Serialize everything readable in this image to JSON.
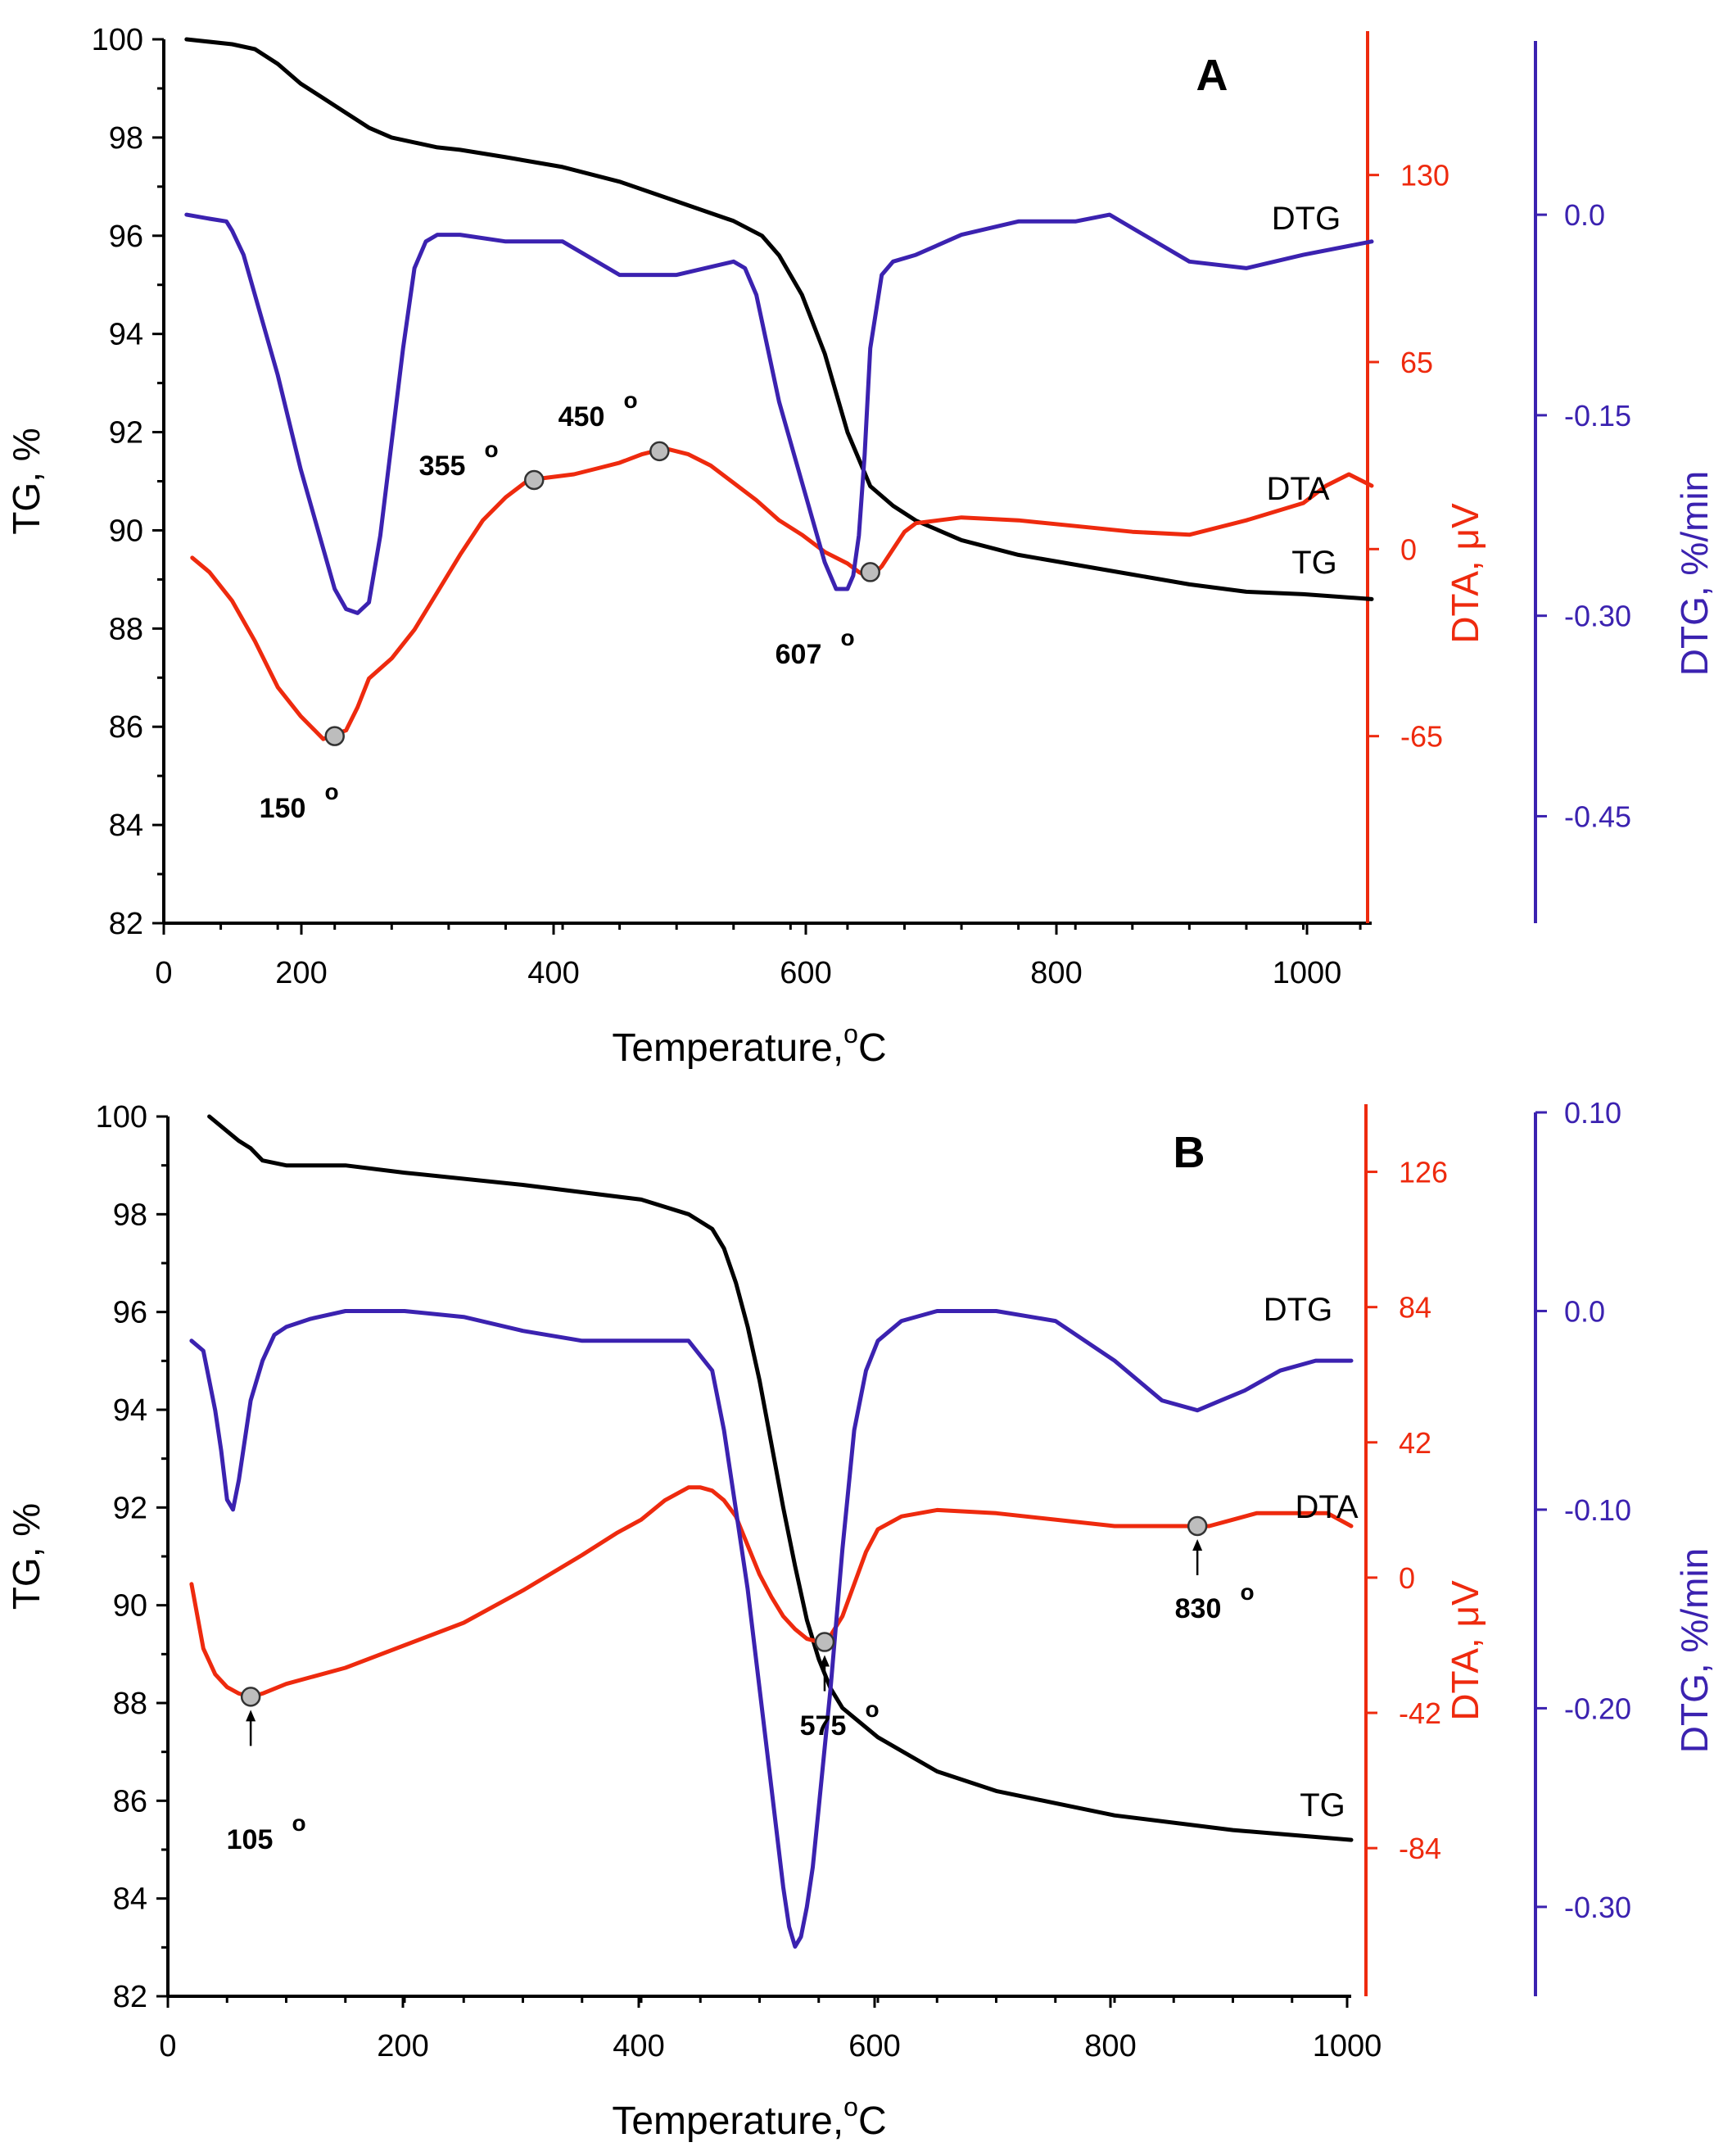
{
  "colors": {
    "tg": "#000000",
    "dta": "#ee2a0e",
    "dtg": "#3b22b0",
    "marker": "#bdbdbd"
  },
  "chart_data": [
    {
      "type": "line",
      "panel_label": "A",
      "title": "",
      "xlabel": "Temperature,",
      "xlabel_unit": "C",
      "xlabel_sup": "o",
      "x_range": [
        0,
        1060
      ],
      "x_ticks": [
        "0",
        "200",
        "400",
        "600",
        "800",
        "1000"
      ],
      "y_left": {
        "label": "TG, %",
        "range": [
          82,
          100
        ],
        "ticks": [
          "82",
          "84",
          "86",
          "88",
          "90",
          "92",
          "94",
          "96",
          "98",
          "100"
        ]
      },
      "y_dta": {
        "label": "DTA, μV",
        "range": [
          -130,
          180
        ],
        "ticks": [
          "-65",
          "0",
          "65",
          "130"
        ]
      },
      "y_dtg": {
        "label": "DTG, %/min",
        "range": [
          -0.53,
          0.13
        ],
        "ticks": [
          "-0.45",
          "-0.30",
          "-0.15",
          "0.0"
        ]
      },
      "series": [
        {
          "name": "TG",
          "axis": "left",
          "color_key": "tg",
          "x": [
            20,
            60,
            80,
            100,
            120,
            140,
            160,
            180,
            200,
            220,
            240,
            260,
            300,
            350,
            400,
            450,
            500,
            525,
            540,
            560,
            580,
            600,
            620,
            640,
            660,
            680,
            700,
            750,
            800,
            850,
            900,
            950,
            1000,
            1060
          ],
          "y": [
            100,
            99.9,
            99.8,
            99.5,
            99.1,
            98.8,
            98.5,
            98.2,
            98.0,
            97.9,
            97.8,
            97.75,
            97.6,
            97.4,
            97.1,
            96.7,
            96.3,
            96.0,
            95.6,
            94.8,
            93.6,
            92.0,
            90.9,
            90.5,
            90.2,
            90.0,
            89.8,
            89.5,
            89.3,
            89.1,
            88.9,
            88.75,
            88.7,
            88.6
          ]
        },
        {
          "name": "DTA",
          "axis": "dta",
          "color_key": "dta",
          "x": [
            25,
            40,
            60,
            80,
            100,
            120,
            140,
            160,
            170,
            180,
            200,
            220,
            240,
            260,
            280,
            300,
            320,
            340,
            360,
            380,
            400,
            420,
            440,
            460,
            480,
            500,
            520,
            540,
            560,
            580,
            600,
            610,
            620,
            630,
            640,
            650,
            660,
            680,
            700,
            750,
            800,
            850,
            900,
            950,
            1000,
            1020,
            1040,
            1060
          ],
          "y": [
            -3,
            -8,
            -18,
            -32,
            -48,
            -58,
            -66,
            -63,
            -55,
            -45,
            -38,
            -28,
            -15,
            -2,
            10,
            18,
            24,
            25,
            26,
            28,
            30,
            33,
            35,
            33,
            29,
            23,
            17,
            10,
            5,
            -1,
            -5,
            -8,
            -10,
            -6,
            0,
            6,
            9,
            10,
            11,
            10,
            8,
            6,
            5,
            10,
            16,
            22,
            26,
            22
          ]
        },
        {
          "name": "DTG",
          "axis": "dtg",
          "color_key": "dtg",
          "x": [
            20,
            40,
            55,
            60,
            70,
            80,
            100,
            120,
            140,
            150,
            160,
            170,
            180,
            190,
            200,
            210,
            220,
            230,
            240,
            260,
            300,
            350,
            400,
            450,
            500,
            510,
            520,
            530,
            540,
            560,
            580,
            590,
            600,
            605,
            610,
            615,
            620,
            630,
            640,
            660,
            700,
            750,
            800,
            830,
            860,
            900,
            950,
            1000,
            1060
          ],
          "y": [
            0.0,
            -0.003,
            -0.005,
            -0.012,
            -0.03,
            -0.06,
            -0.12,
            -0.19,
            -0.25,
            -0.28,
            -0.295,
            -0.298,
            -0.29,
            -0.24,
            -0.17,
            -0.1,
            -0.04,
            -0.02,
            -0.015,
            -0.015,
            -0.02,
            -0.02,
            -0.045,
            -0.045,
            -0.035,
            -0.04,
            -0.06,
            -0.1,
            -0.14,
            -0.2,
            -0.26,
            -0.28,
            -0.28,
            -0.27,
            -0.24,
            -0.18,
            -0.1,
            -0.045,
            -0.035,
            -0.03,
            -0.015,
            -0.005,
            -0.005,
            0.0,
            -0.015,
            -0.035,
            -0.04,
            -0.03,
            -0.02
          ]
        }
      ],
      "point_annotations": [
        {
          "label": "150",
          "sup": "o",
          "x": 150,
          "y": -65,
          "series": "DTA"
        },
        {
          "label": "355",
          "sup": "o",
          "x": 325,
          "y": 24,
          "series": "DTA"
        },
        {
          "label": "450",
          "sup": "o",
          "x": 435,
          "y": 34,
          "series": "DTA"
        },
        {
          "label": "607",
          "sup": "o",
          "x": 620,
          "y": -8,
          "series": "DTA"
        }
      ],
      "curve_labels": [
        "DTG",
        "DTA",
        "TG"
      ]
    },
    {
      "type": "line",
      "panel_label": "B",
      "title": "",
      "xlabel": "Temperature,",
      "xlabel_unit": "C",
      "xlabel_sup": "o",
      "x_range": [
        0,
        1000
      ],
      "x_ticks": [
        "0",
        "200",
        "400",
        "600",
        "800",
        "1000"
      ],
      "y_left": {
        "label": "TG, %",
        "range": [
          82,
          100
        ],
        "ticks": [
          "82",
          "84",
          "86",
          "88",
          "90",
          "92",
          "94",
          "96",
          "98",
          "100"
        ]
      },
      "y_dta": {
        "label": "DTA, μV",
        "range": [
          -130,
          147
        ],
        "ticks": [
          "-84",
          "-42",
          "0",
          "42",
          "84",
          "126"
        ]
      },
      "y_dtg": {
        "label": "DTG, %/min",
        "range": [
          -0.345,
          0.1
        ],
        "ticks": [
          "-0.30",
          "-0.20",
          "-0.10",
          "0.0",
          "0.10"
        ]
      },
      "series": [
        {
          "name": "TG",
          "axis": "left",
          "color_key": "tg",
          "x": [
            35,
            50,
            60,
            70,
            80,
            100,
            150,
            200,
            300,
            400,
            440,
            460,
            470,
            480,
            490,
            500,
            510,
            520,
            530,
            540,
            550,
            560,
            570,
            580,
            600,
            650,
            700,
            800,
            900,
            1000
          ],
          "y": [
            100,
            99.7,
            99.5,
            99.35,
            99.1,
            99.0,
            99.0,
            98.85,
            98.6,
            98.3,
            98.0,
            97.7,
            97.3,
            96.6,
            95.7,
            94.6,
            93.3,
            92.0,
            90.8,
            89.7,
            88.9,
            88.3,
            87.9,
            87.7,
            87.3,
            86.6,
            86.2,
            85.7,
            85.4,
            85.2
          ]
        },
        {
          "name": "DTA",
          "axis": "dta",
          "color_key": "dta",
          "x": [
            20,
            30,
            40,
            50,
            60,
            70,
            80,
            100,
            150,
            200,
            250,
            300,
            350,
            380,
            400,
            420,
            440,
            450,
            460,
            470,
            480,
            490,
            500,
            510,
            520,
            530,
            540,
            550,
            560,
            570,
            580,
            590,
            600,
            620,
            650,
            700,
            800,
            860,
            880,
            900,
            920,
            960,
            980,
            1000
          ],
          "y": [
            -2,
            -22,
            -30,
            -34,
            -36,
            -37,
            -36,
            -33,
            -28,
            -21,
            -14,
            -4,
            7,
            14,
            18,
            24,
            28,
            28,
            27,
            24,
            19,
            10,
            1,
            -6,
            -12,
            -16,
            -19,
            -20,
            -18,
            -12,
            -2,
            8,
            15,
            19,
            21,
            20,
            16,
            16,
            16,
            18,
            20,
            20,
            20,
            16
          ]
        },
        {
          "name": "DTG",
          "axis": "dtg",
          "color_key": "dtg",
          "x": [
            20,
            30,
            40,
            45,
            50,
            55,
            60,
            65,
            70,
            80,
            90,
            100,
            120,
            150,
            200,
            250,
            300,
            350,
            400,
            440,
            460,
            470,
            480,
            490,
            500,
            510,
            520,
            525,
            530,
            535,
            540,
            545,
            550,
            560,
            570,
            580,
            590,
            600,
            620,
            650,
            700,
            750,
            800,
            840,
            870,
            890,
            910,
            940,
            970,
            990,
            1000
          ],
          "y": [
            -0.015,
            -0.02,
            -0.05,
            -0.07,
            -0.095,
            -0.1,
            -0.085,
            -0.065,
            -0.045,
            -0.025,
            -0.012,
            -0.008,
            -0.004,
            0.0,
            0.0,
            -0.003,
            -0.01,
            -0.015,
            -0.015,
            -0.015,
            -0.03,
            -0.06,
            -0.1,
            -0.14,
            -0.19,
            -0.24,
            -0.29,
            -0.31,
            -0.32,
            -0.315,
            -0.3,
            -0.28,
            -0.25,
            -0.19,
            -0.12,
            -0.06,
            -0.03,
            -0.015,
            -0.005,
            0.0,
            0.0,
            -0.005,
            -0.025,
            -0.045,
            -0.05,
            -0.045,
            -0.04,
            -0.03,
            -0.025,
            -0.025,
            -0.025
          ]
        }
      ],
      "point_annotations": [
        {
          "label": "105",
          "sup": "o",
          "x": 70,
          "y": -37,
          "series": "DTA",
          "arrow": true
        },
        {
          "label": "575",
          "sup": "o",
          "x": 555,
          "y": -20,
          "series": "DTA",
          "arrow": true
        },
        {
          "label": "830",
          "sup": "o",
          "x": 870,
          "y": 16,
          "series": "DTA",
          "arrow": true
        }
      ],
      "curve_labels": [
        "DTG",
        "DTA",
        "TG"
      ]
    }
  ]
}
